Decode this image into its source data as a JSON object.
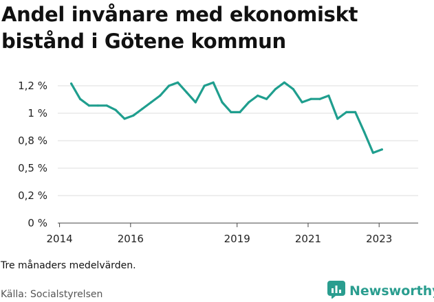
{
  "title": "Andel invånare med ekonomiskt bistånd i Götene kommun",
  "note": "Tre månaders medelvärden.",
  "source": "Källa: Socialstyrelsen",
  "brand": {
    "name": "Newsworthy",
    "icon": "bar-chart-icon",
    "color": "#2a9d8f"
  },
  "chart_data": {
    "type": "line",
    "title": "Andel invånare med ekonomiskt bistånd i Götene kommun",
    "xlabel": "",
    "ylabel": "",
    "x_tick_labels": [
      "2014",
      "2016",
      "2019",
      "2021",
      "2023"
    ],
    "x_tick_values": [
      2014,
      2016,
      2019,
      2021,
      2023
    ],
    "xlim": [
      2013.95,
      2024.1
    ],
    "y_tick_labels": [
      "0 %",
      "0,2 %",
      "0,5 %",
      "0,8 %",
      "1 %",
      "1,2 %"
    ],
    "y_tick_values": [
      0,
      0.25,
      0.5,
      0.75,
      1.0,
      1.25
    ],
    "ylim": [
      0,
      1.25
    ],
    "grid": true,
    "line_color": "#1f9e8e",
    "series": [
      {
        "x": [
          2014.33,
          2014.58,
          2014.83,
          2015.08,
          2015.33,
          2015.58,
          2015.83,
          2016.08,
          2016.33,
          2016.58,
          2016.83,
          2017.08,
          2017.33,
          2017.58,
          2017.83,
          2018.08,
          2018.33,
          2018.58,
          2018.83,
          2019.08,
          2019.33,
          2019.58,
          2019.83,
          2020.08,
          2020.33,
          2020.58,
          2020.83,
          2021.08,
          2021.33,
          2021.58,
          2021.83,
          2022.08,
          2022.33,
          2022.58,
          2022.83,
          2023.08
        ],
        "values": [
          1.27,
          1.13,
          1.07,
          1.07,
          1.07,
          1.03,
          0.95,
          0.98,
          1.04,
          1.1,
          1.16,
          1.25,
          1.28,
          1.19,
          1.1,
          1.25,
          1.28,
          1.1,
          1.01,
          1.01,
          1.1,
          1.16,
          1.13,
          1.22,
          1.28,
          1.22,
          1.1,
          1.13,
          1.13,
          1.16,
          0.95,
          1.01,
          1.01,
          0.83,
          0.64,
          0.67
        ]
      }
    ]
  }
}
